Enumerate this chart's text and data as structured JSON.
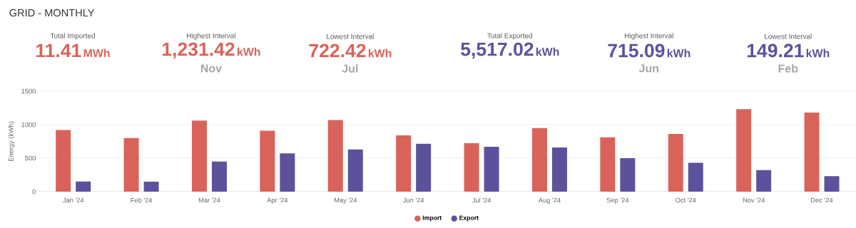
{
  "chart_data": [
    {
      "type": "other",
      "title": "GRID - MONTHLY",
      "annotations": [
        "Total Imported",
        "11.41",
        "MWh",
        "Highest Interval",
        "1,231.42",
        "kWh",
        "Nov",
        "Lowest Interval",
        "722.42",
        "kWh",
        "Jul",
        "Total Exported",
        "5,517.02",
        "kWh",
        "Highest Interval",
        "715.09",
        "kWh",
        "Jun",
        "Lowest Interval",
        "149.21",
        "kWh",
        "Feb"
      ]
    },
    {
      "type": "bar",
      "ylabel": "Energy (kWh)",
      "categories": [
        "Jan '24",
        "Feb '24",
        "Mar '24",
        "Apr '24",
        "May '24",
        "Jun '24",
        "Jul '24",
        "Aug '24",
        "Sep '24",
        "Oct '24",
        "Nov '24",
        "Dec '24"
      ],
      "series": [
        {
          "name": "Import",
          "color": "#d9635a",
          "values": [
            920,
            800,
            1060,
            910,
            1070,
            840,
            722.42,
            950,
            810,
            860,
            1231.42,
            1180
          ]
        },
        {
          "name": "Export",
          "color": "#5c529c",
          "values": [
            150,
            149.21,
            450,
            570,
            630,
            715.09,
            670,
            660,
            500,
            430,
            320,
            230
          ]
        }
      ],
      "ylim": [
        0,
        1500
      ],
      "yticks": [
        0,
        500,
        1000,
        1500
      ],
      "grid": "y",
      "legend": "bottom"
    }
  ]
}
